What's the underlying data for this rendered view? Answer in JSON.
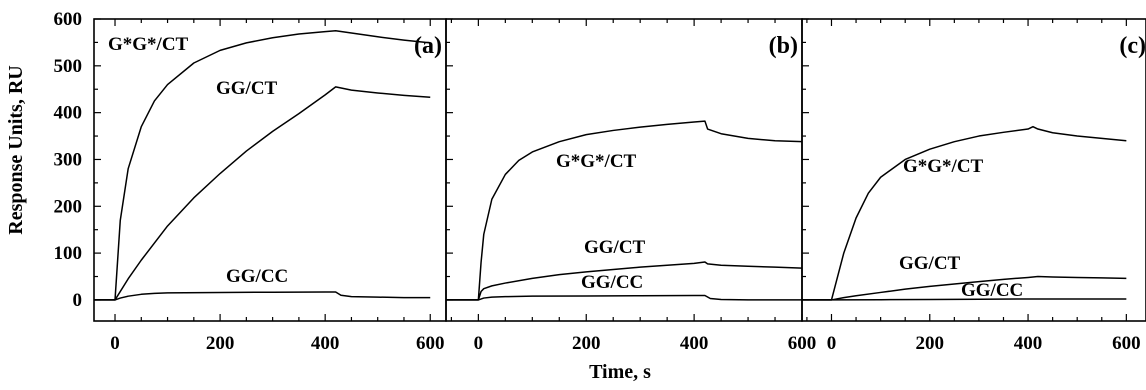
{
  "figure": {
    "ylabel": "Response Units, RU",
    "xlabel": "Time, s"
  },
  "chart_data": [
    {
      "type": "line",
      "panel_label": "(a)",
      "xlim": [
        -40,
        630
      ],
      "ylim": [
        -45,
        600
      ],
      "x_ticks": [
        0,
        200,
        400,
        600
      ],
      "y_ticks": [
        0,
        100,
        200,
        300,
        400,
        500,
        600
      ],
      "grid": false,
      "series": [
        {
          "name": "G*G*/CT",
          "x": [
            -40,
            0,
            10,
            25,
            50,
            75,
            100,
            150,
            200,
            250,
            300,
            350,
            400,
            420,
            450,
            500,
            550,
            600
          ],
          "y": [
            0,
            0,
            170,
            280,
            370,
            425,
            460,
            506,
            533,
            549,
            560,
            568,
            573,
            575,
            570,
            562,
            555,
            549
          ]
        },
        {
          "name": "GG/CT",
          "x": [
            -40,
            0,
            25,
            50,
            100,
            150,
            200,
            250,
            300,
            350,
            400,
            420,
            450,
            500,
            550,
            600
          ],
          "y": [
            0,
            0,
            45,
            85,
            158,
            218,
            270,
            318,
            360,
            398,
            438,
            455,
            448,
            442,
            437,
            433
          ]
        },
        {
          "name": "GG/CC",
          "x": [
            -40,
            0,
            10,
            25,
            50,
            75,
            100,
            200,
            300,
            400,
            420,
            430,
            450,
            500,
            550,
            600
          ],
          "y": [
            0,
            0,
            4,
            8,
            12,
            14,
            15,
            16,
            16.5,
            17,
            17,
            10,
            7,
            6,
            5,
            5
          ]
        }
      ]
    },
    {
      "type": "line",
      "panel_label": "(b)",
      "xlim": [
        -60,
        600
      ],
      "ylim": [
        -45,
        600
      ],
      "x_ticks": [
        0,
        200,
        400,
        600
      ],
      "grid": false,
      "series": [
        {
          "name": "G*G*/CT",
          "x": [
            -60,
            0,
            5,
            10,
            25,
            50,
            75,
            100,
            150,
            200,
            250,
            300,
            350,
            400,
            420,
            425,
            450,
            500,
            550,
            600
          ],
          "y": [
            0,
            0,
            80,
            140,
            215,
            268,
            298,
            316,
            338,
            353,
            362,
            369,
            375,
            380,
            382,
            365,
            355,
            345,
            340,
            338
          ]
        },
        {
          "name": "GG/CT",
          "x": [
            -60,
            0,
            5,
            10,
            25,
            50,
            100,
            150,
            200,
            250,
            300,
            350,
            400,
            420,
            425,
            450,
            500,
            550,
            600
          ],
          "y": [
            0,
            0,
            18,
            24,
            30,
            36,
            46,
            54,
            60,
            65,
            70,
            74,
            78,
            81,
            77,
            74,
            72,
            70,
            68
          ]
        },
        {
          "name": "GG/CC",
          "x": [
            -60,
            0,
            10,
            25,
            50,
            100,
            200,
            300,
            400,
            420,
            430,
            450,
            500,
            550,
            600
          ],
          "y": [
            0,
            0,
            4,
            6,
            7,
            8,
            8.5,
            9,
            9.5,
            9.5,
            3,
            1,
            0,
            0,
            0
          ]
        }
      ]
    },
    {
      "type": "line",
      "panel_label": "(c)",
      "xlim": [
        -60,
        640
      ],
      "ylim": [
        -45,
        600
      ],
      "x_ticks": [
        0,
        200,
        400,
        600
      ],
      "grid": false,
      "series": [
        {
          "name": "G*G*/CT",
          "x": [
            -60,
            0,
            10,
            25,
            50,
            75,
            100,
            150,
            200,
            250,
            300,
            350,
            400,
            410,
            420,
            450,
            500,
            550,
            600
          ],
          "y": [
            0,
            0,
            40,
            100,
            175,
            228,
            262,
            300,
            322,
            338,
            350,
            358,
            365,
            370,
            365,
            357,
            350,
            345,
            340
          ]
        },
        {
          "name": "GG/CT",
          "x": [
            -60,
            0,
            25,
            50,
            100,
            150,
            200,
            250,
            300,
            350,
            400,
            420,
            450,
            500,
            550,
            600
          ],
          "y": [
            0,
            0,
            5,
            9,
            16,
            23,
            29,
            34,
            39,
            44,
            48,
            50,
            49,
            48,
            47,
            46
          ]
        },
        {
          "name": "GG/CC",
          "x": [
            -60,
            0,
            100,
            200,
            300,
            400,
            500,
            600
          ],
          "y": [
            0,
            0,
            0.5,
            1,
            1.5,
            2,
            2,
            2
          ]
        }
      ]
    }
  ]
}
